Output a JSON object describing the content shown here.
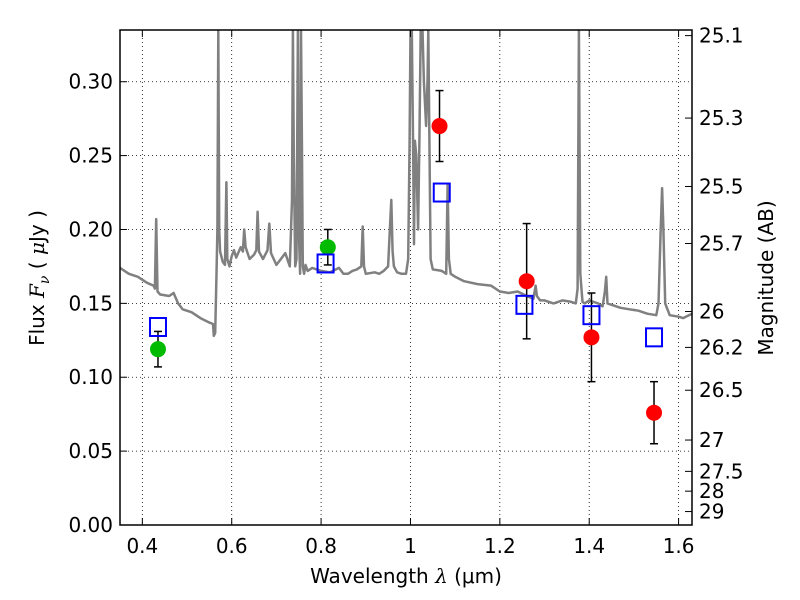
{
  "chart_data": {
    "type": "scatter",
    "xlabel": "Wavelength  λ (μm)",
    "xlabel_parts": {
      "text": "Wavelength  ",
      "var": "λ",
      "unit": " (μm)"
    },
    "ylabel_parts": {
      "pre": "Flux  ",
      "var": "F",
      "sub": "ν",
      "open": "  (  ",
      "mu": "μ",
      "unit": "Jy )"
    },
    "y2label": "Magnitude (AB)",
    "xlim": [
      0.35,
      1.63
    ],
    "ylim": [
      0.0,
      0.335
    ],
    "grid": true,
    "grid_style": "dotted",
    "x_ticks": [
      {
        "value": 0.4,
        "label": "0.4"
      },
      {
        "value": 0.6,
        "label": "0.6"
      },
      {
        "value": 0.8,
        "label": "0.8"
      },
      {
        "value": 1.0,
        "label": "1"
      },
      {
        "value": 1.2,
        "label": "1.2"
      },
      {
        "value": 1.4,
        "label": "1.4"
      },
      {
        "value": 1.6,
        "label": "1.6"
      }
    ],
    "y_ticks": [
      {
        "value": 0.0,
        "label": "0.00"
      },
      {
        "value": 0.05,
        "label": "0.05"
      },
      {
        "value": 0.1,
        "label": "0.10"
      },
      {
        "value": 0.15,
        "label": "0.15"
      },
      {
        "value": 0.2,
        "label": "0.20"
      },
      {
        "value": 0.25,
        "label": "0.25"
      },
      {
        "value": 0.3,
        "label": "0.30"
      }
    ],
    "y2_ticks": [
      {
        "label": "25.1",
        "flux": 0.3312
      },
      {
        "label": "25.3",
        "flux": 0.2754
      },
      {
        "label": "25.5",
        "flux": 0.2291
      },
      {
        "label": "25.7",
        "flux": 0.1905
      },
      {
        "label": "26",
        "flux": 0.1445
      },
      {
        "label": "26.2",
        "flux": 0.1202
      },
      {
        "label": "26.5",
        "flux": 0.0912
      },
      {
        "label": "27",
        "flux": 0.0575
      },
      {
        "label": "27.5",
        "flux": 0.0363
      },
      {
        "label": "28",
        "flux": 0.0229
      },
      {
        "label": "29",
        "flux": 0.0091
      }
    ],
    "series": [
      {
        "kind": "model_spectrum",
        "color": "#808080",
        "points": [
          [
            0.35,
            0.174
          ],
          [
            0.37,
            0.17
          ],
          [
            0.39,
            0.168
          ],
          [
            0.41,
            0.164
          ],
          [
            0.425,
            0.162
          ],
          [
            0.428,
            0.16
          ],
          [
            0.431,
            0.207
          ],
          [
            0.434,
            0.158
          ],
          [
            0.44,
            0.156
          ],
          [
            0.46,
            0.155
          ],
          [
            0.47,
            0.157
          ],
          [
            0.48,
            0.15
          ],
          [
            0.49,
            0.146
          ],
          [
            0.51,
            0.144
          ],
          [
            0.53,
            0.14
          ],
          [
            0.55,
            0.137
          ],
          [
            0.558,
            0.136
          ],
          [
            0.56,
            0.128
          ],
          [
            0.563,
            0.13
          ],
          [
            0.566,
            0.17
          ],
          [
            0.568,
            0.2
          ],
          [
            0.57,
            0.335
          ],
          [
            0.572,
            0.2
          ],
          [
            0.574,
            0.185
          ],
          [
            0.58,
            0.178
          ],
          [
            0.585,
            0.176
          ],
          [
            0.588,
            0.232
          ],
          [
            0.59,
            0.18
          ],
          [
            0.595,
            0.175
          ],
          [
            0.6,
            0.182
          ],
          [
            0.605,
            0.186
          ],
          [
            0.61,
            0.181
          ],
          [
            0.62,
            0.188
          ],
          [
            0.625,
            0.185
          ],
          [
            0.628,
            0.2
          ],
          [
            0.631,
            0.188
          ],
          [
            0.64,
            0.18
          ],
          [
            0.65,
            0.183
          ],
          [
            0.655,
            0.186
          ],
          [
            0.658,
            0.212
          ],
          [
            0.661,
            0.185
          ],
          [
            0.67,
            0.18
          ],
          [
            0.68,
            0.186
          ],
          [
            0.684,
            0.204
          ],
          [
            0.688,
            0.184
          ],
          [
            0.7,
            0.176
          ],
          [
            0.71,
            0.18
          ],
          [
            0.72,
            0.184
          ],
          [
            0.73,
            0.175
          ],
          [
            0.735,
            0.22
          ],
          [
            0.737,
            0.335
          ],
          [
            0.739,
            0.25
          ],
          [
            0.742,
            0.175
          ],
          [
            0.745,
            0.18
          ],
          [
            0.748,
            0.335
          ],
          [
            0.75,
            0.2
          ],
          [
            0.753,
            0.17
          ],
          [
            0.755,
            0.335
          ],
          [
            0.757,
            0.26
          ],
          [
            0.759,
            0.175
          ],
          [
            0.762,
            0.17
          ],
          [
            0.765,
            0.176
          ],
          [
            0.77,
            0.172
          ],
          [
            0.78,
            0.174
          ],
          [
            0.8,
            0.172
          ],
          [
            0.82,
            0.171
          ],
          [
            0.84,
            0.174
          ],
          [
            0.85,
            0.17
          ],
          [
            0.86,
            0.17
          ],
          [
            0.87,
            0.172
          ],
          [
            0.88,
            0.173
          ],
          [
            0.89,
            0.175
          ],
          [
            0.893,
            0.202
          ],
          [
            0.896,
            0.175
          ],
          [
            0.9,
            0.17
          ],
          [
            0.92,
            0.171
          ],
          [
            0.93,
            0.17
          ],
          [
            0.94,
            0.172
          ],
          [
            0.95,
            0.175
          ],
          [
            0.953,
            0.195
          ],
          [
            0.957,
            0.22
          ],
          [
            0.96,
            0.185
          ],
          [
            0.963,
            0.175
          ],
          [
            0.97,
            0.171
          ],
          [
            0.98,
            0.17
          ],
          [
            0.99,
            0.17
          ],
          [
            0.995,
            0.18
          ],
          [
            0.998,
            0.26
          ],
          [
            1.0,
            0.335
          ],
          [
            1.003,
            0.335
          ],
          [
            1.006,
            0.25
          ],
          [
            1.008,
            0.19
          ],
          [
            1.01,
            0.26
          ],
          [
            1.013,
            0.25
          ],
          [
            1.017,
            0.2
          ],
          [
            1.02,
            0.26
          ],
          [
            1.023,
            0.335
          ],
          [
            1.027,
            0.335
          ],
          [
            1.03,
            0.3
          ],
          [
            1.035,
            0.27
          ],
          [
            1.038,
            0.3
          ],
          [
            1.04,
            0.335
          ],
          [
            1.045,
            0.18
          ],
          [
            1.05,
            0.173
          ],
          [
            1.07,
            0.172
          ],
          [
            1.08,
            0.17
          ],
          [
            1.083,
            0.23
          ],
          [
            1.086,
            0.18
          ],
          [
            1.09,
            0.17
          ],
          [
            1.1,
            0.168
          ],
          [
            1.12,
            0.165
          ],
          [
            1.15,
            0.163
          ],
          [
            1.18,
            0.162
          ],
          [
            1.2,
            0.158
          ],
          [
            1.22,
            0.157
          ],
          [
            1.24,
            0.158
          ],
          [
            1.26,
            0.155
          ],
          [
            1.275,
            0.153
          ],
          [
            1.28,
            0.162
          ],
          [
            1.283,
            0.155
          ],
          [
            1.29,
            0.152
          ],
          [
            1.3,
            0.152
          ],
          [
            1.32,
            0.15
          ],
          [
            1.34,
            0.152
          ],
          [
            1.36,
            0.151
          ],
          [
            1.37,
            0.15
          ],
          [
            1.374,
            0.16
          ],
          [
            1.377,
            0.335
          ],
          [
            1.38,
            0.17
          ],
          [
            1.385,
            0.151
          ],
          [
            1.39,
            0.15
          ],
          [
            1.4,
            0.152
          ],
          [
            1.42,
            0.15
          ],
          [
            1.43,
            0.148
          ],
          [
            1.435,
            0.158
          ],
          [
            1.438,
            0.168
          ],
          [
            1.441,
            0.15
          ],
          [
            1.45,
            0.149
          ],
          [
            1.47,
            0.147
          ],
          [
            1.49,
            0.146
          ],
          [
            1.51,
            0.145
          ],
          [
            1.53,
            0.143
          ],
          [
            1.55,
            0.142
          ],
          [
            1.555,
            0.15
          ],
          [
            1.56,
            0.2
          ],
          [
            1.563,
            0.228
          ],
          [
            1.566,
            0.2
          ],
          [
            1.57,
            0.15
          ],
          [
            1.58,
            0.142
          ],
          [
            1.6,
            0.141
          ],
          [
            1.61,
            0.14
          ],
          [
            1.63,
            0.143
          ]
        ]
      },
      {
        "kind": "observed",
        "color": "#ff0000",
        "points": [
          {
            "x": 1.065,
            "y": 0.27,
            "yerr": 0.024
          },
          {
            "x": 1.26,
            "y": 0.165,
            "yerr": 0.039
          },
          {
            "x": 1.405,
            "y": 0.127,
            "yerr": 0.03
          },
          {
            "x": 1.545,
            "y": 0.076,
            "yerr": 0.021
          }
        ]
      },
      {
        "kind": "observed",
        "color": "#00bb00",
        "points": [
          {
            "x": 0.435,
            "y": 0.119,
            "yerr": 0.012
          },
          {
            "x": 0.815,
            "y": 0.188,
            "yerr": 0.012
          }
        ]
      },
      {
        "kind": "model_photometry",
        "color": "#0000ff",
        "points": [
          {
            "x": 0.435,
            "y": 0.134
          },
          {
            "x": 0.81,
            "y": 0.177
          },
          {
            "x": 1.07,
            "y": 0.225
          },
          {
            "x": 1.255,
            "y": 0.149
          },
          {
            "x": 1.405,
            "y": 0.142
          },
          {
            "x": 1.545,
            "y": 0.127
          }
        ]
      }
    ]
  }
}
